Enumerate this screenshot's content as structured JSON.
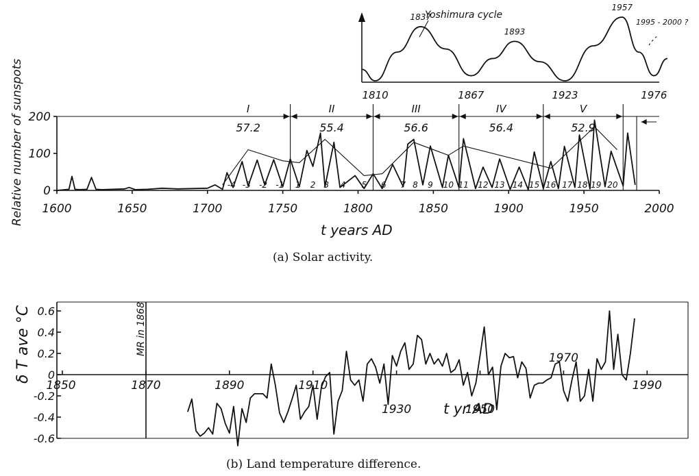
{
  "chart_data": [
    {
      "type": "line",
      "title": "Yoshimura cycle",
      "peaks": [
        {
          "label": "1837"
        },
        {
          "label": "1893"
        },
        {
          "label": "1957"
        }
      ],
      "troughs": [
        {
          "label": "1810"
        },
        {
          "label": "1867"
        },
        {
          "label": "1923"
        },
        {
          "label": "1976"
        }
      ],
      "projection_label": "1995 - 2000 ?",
      "x": [
        1802,
        1810,
        1823,
        1837,
        1852,
        1867,
        1880,
        1893,
        1908,
        1923,
        1940,
        1957,
        1967,
        1976,
        1984
      ],
      "y": [
        0.18,
        0.0,
        0.45,
        0.85,
        0.5,
        0.08,
        0.35,
        0.62,
        0.3,
        0.0,
        0.55,
        1.0,
        0.45,
        0.08,
        0.35
      ]
    },
    {
      "type": "line",
      "xlabel": "t   years  AD",
      "ylabel": "Relative number of sunspots",
      "xlim": [
        1600,
        2000
      ],
      "ylim": [
        0,
        200
      ],
      "xticks": [
        "1600",
        "1650",
        "1700",
        "1750",
        "1800",
        "1850",
        "1900",
        "1950",
        "2000"
      ],
      "yticks": [
        "0",
        "100",
        "200"
      ],
      "periods": [
        {
          "roman": "I",
          "mean": "57.2",
          "start": 1650,
          "end": 1755
        },
        {
          "roman": "II",
          "mean": "55.4",
          "start": 1755,
          "end": 1810
        },
        {
          "roman": "III",
          "mean": "56.6",
          "start": 1810,
          "end": 1867
        },
        {
          "roman": "IV",
          "mean": "56.4",
          "start": 1867,
          "end": 1923
        },
        {
          "roman": "V",
          "mean": "52.9",
          "start": 1923,
          "end": 1976
        }
      ],
      "cycle_labels": [
        {
          "label": "-4",
          "x": 1716
        },
        {
          "label": "-3",
          "x": 1726
        },
        {
          "label": "-2",
          "x": 1737
        },
        {
          "label": "-1",
          "x": 1748
        },
        {
          "label": "1",
          "x": 1760
        },
        {
          "label": "2",
          "x": 1770
        },
        {
          "label": "3",
          "x": 1779
        },
        {
          "label": "4",
          "x": 1790
        },
        {
          "label": "5",
          "x": 1804
        },
        {
          "label": "6",
          "x": 1817
        },
        {
          "label": "7",
          "x": 1830
        },
        {
          "label": "8",
          "x": 1838
        },
        {
          "label": "9",
          "x": 1848
        },
        {
          "label": "10",
          "x": 1860
        },
        {
          "label": "11",
          "x": 1870
        },
        {
          "label": "12",
          "x": 1883
        },
        {
          "label": "13",
          "x": 1894
        },
        {
          "label": "14",
          "x": 1906
        },
        {
          "label": "15",
          "x": 1917
        },
        {
          "label": "16",
          "x": 1928
        },
        {
          "label": "17",
          "x": 1939
        },
        {
          "label": "18",
          "x": 1949
        },
        {
          "label": "19",
          "x": 1958
        },
        {
          "label": "20",
          "x": 1969
        }
      ],
      "series": [
        {
          "x": [
            1600,
            1608,
            1610,
            1612,
            1615,
            1620,
            1623,
            1626,
            1630,
            1645,
            1648,
            1652,
            1660,
            1670,
            1680,
            1690,
            1700,
            1705,
            1710,
            1713,
            1717,
            1723,
            1727,
            1733,
            1738,
            1744,
            1750,
            1755,
            1761,
            1766,
            1770,
            1775,
            1778,
            1784,
            1788,
            1798,
            1804,
            1810,
            1816,
            1823,
            1830,
            1833,
            1837,
            1843,
            1848,
            1856,
            1860,
            1867,
            1870,
            1878,
            1883,
            1889,
            1894,
            1901,
            1907,
            1913,
            1917,
            1923,
            1928,
            1933,
            1937,
            1944,
            1947,
            1954,
            1957,
            1964,
            1968,
            1976,
            1979,
            1984
          ],
          "y": [
            0,
            3,
            38,
            3,
            2,
            3,
            35,
            3,
            2,
            4,
            8,
            2,
            3,
            6,
            4,
            5,
            6,
            15,
            3,
            48,
            8,
            78,
            12,
            82,
            15,
            83,
            10,
            85,
            10,
            108,
            65,
            155,
            10,
            130,
            8,
            40,
            5,
            45,
            5,
            70,
            10,
            125,
            138,
            15,
            120,
            8,
            95,
            8,
            140,
            5,
            63,
            8,
            85,
            3,
            63,
            2,
            104,
            5,
            78,
            5,
            119,
            8,
            150,
            4,
            190,
            10,
            106,
            12,
            155,
            15
          ]
        }
      ]
    },
    {
      "type": "line",
      "xlabel": "t  yr AD",
      "ylabel": "δ T ave  °C",
      "xlim": [
        1850,
        1990
      ],
      "ylim": [
        -0.65,
        0.6
      ],
      "xticks": [
        "1850",
        "1870",
        "1890",
        "1910",
        "1930",
        "1950",
        "1970",
        "1990"
      ],
      "yticks": [
        "0.6",
        "0.4",
        "0.2",
        "0",
        "-0.2",
        "-0.4",
        "-0.6"
      ],
      "marker_label": "MR in 1868",
      "series": [
        {
          "x": [
            1880,
            1881,
            1882,
            1883,
            1884,
            1885,
            1886,
            1887,
            1888,
            1889,
            1890,
            1891,
            1892,
            1893,
            1894,
            1895,
            1896,
            1897,
            1898,
            1899,
            1900,
            1901,
            1902,
            1903,
            1904,
            1905,
            1906,
            1907,
            1908,
            1909,
            1910,
            1911,
            1912,
            1913,
            1914,
            1915,
            1916,
            1917,
            1918,
            1919,
            1920,
            1921,
            1922,
            1923,
            1924,
            1925,
            1926,
            1927,
            1928,
            1929,
            1930,
            1931,
            1932,
            1933,
            1934,
            1935,
            1936,
            1937,
            1938,
            1939,
            1940,
            1941,
            1942,
            1943,
            1944,
            1945,
            1946,
            1947,
            1948,
            1949,
            1950,
            1951,
            1952,
            1953,
            1954,
            1955,
            1956,
            1957,
            1958,
            1959,
            1960,
            1961,
            1962,
            1963,
            1964,
            1965,
            1966,
            1967,
            1968,
            1969,
            1970,
            1971,
            1972,
            1973,
            1974,
            1975,
            1976,
            1977,
            1978,
            1979,
            1980,
            1981,
            1982,
            1983,
            1984,
            1985,
            1986,
            1987
          ],
          "y": [
            -0.35,
            -0.23,
            -0.53,
            -0.58,
            -0.55,
            -0.5,
            -0.56,
            -0.27,
            -0.32,
            -0.46,
            -0.55,
            -0.3,
            -0.67,
            -0.32,
            -0.45,
            -0.22,
            -0.18,
            -0.18,
            -0.18,
            -0.22,
            0.1,
            -0.1,
            -0.36,
            -0.45,
            -0.35,
            -0.23,
            -0.1,
            -0.42,
            -0.35,
            -0.3,
            -0.1,
            -0.42,
            -0.12,
            -0.02,
            0.02,
            -0.56,
            -0.25,
            -0.15,
            0.22,
            -0.05,
            -0.1,
            -0.05,
            -0.25,
            0.1,
            0.15,
            0.07,
            -0.08,
            0.1,
            -0.28,
            0.18,
            0.08,
            0.22,
            0.3,
            0.05,
            0.1,
            0.37,
            0.33,
            0.1,
            0.2,
            0.1,
            0.15,
            0.08,
            0.2,
            0.02,
            0.05,
            0.14,
            -0.1,
            0.02,
            -0.2,
            -0.08,
            0.18,
            0.45,
            0.0,
            0.07,
            -0.33,
            0.08,
            0.2,
            0.16,
            0.17,
            -0.03,
            0.12,
            0.06,
            -0.22,
            -0.1,
            -0.08,
            -0.08,
            -0.05,
            -0.03,
            0.1,
            0.12,
            -0.15,
            -0.25,
            -0.05,
            0.12,
            -0.25,
            -0.2,
            0.05,
            -0.25,
            0.15,
            0.05,
            0.12,
            0.6,
            0.05,
            0.38,
            0.0,
            -0.05,
            0.2,
            0.53
          ]
        }
      ]
    }
  ],
  "captions": {
    "a": "(a)  Solar activity.",
    "b": "(b)  Land temperature difference."
  }
}
